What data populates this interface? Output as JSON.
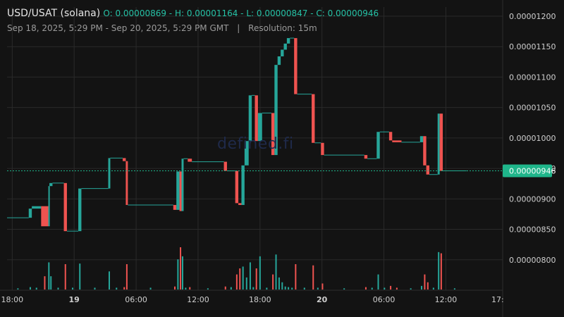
{
  "header": {
    "symbol": "USD/USAT (solana)",
    "ohlc": "O: 0.00000869 - H: 0.00001164 - L: 0.00000847 - C: 0.00000946",
    "range": "Sep 18, 2025, 5:29 PM - Sep 20, 2025, 5:29 PM GMT",
    "separator": "|",
    "resolution": "Resolution: 15m"
  },
  "watermark": "defined.fi",
  "colors": {
    "up": "#26a69a",
    "down": "#ef5350",
    "background": "#131313",
    "grid": "#2a2a2a",
    "price_tag": "#1fb58a"
  },
  "chart_data": {
    "type": "candlestick",
    "title": "USD/USAT (solana)",
    "y_axis_ticks": [
      "0.00001200",
      "0.00001150",
      "0.00001100",
      "0.00001050",
      "0.00001000",
      "0.00000950",
      "0.00000900",
      "0.00000850",
      "0.00000800"
    ],
    "y_range": [
      7.5e-06,
      1.215e-05
    ],
    "x_axis_ticks": [
      {
        "label": "18:00",
        "t": 0.5,
        "bold": false
      },
      {
        "label": "19",
        "t": 6.5,
        "bold": true
      },
      {
        "label": "06:00",
        "t": 12.5,
        "bold": false
      },
      {
        "label": "12:00",
        "t": 18.5,
        "bold": false
      },
      {
        "label": "18:00",
        "t": 24.5,
        "bold": false
      },
      {
        "label": "20",
        "t": 30.5,
        "bold": true
      },
      {
        "label": "06:00",
        "t": 36.5,
        "bold": false
      },
      {
        "label": "12:00",
        "t": 42.5,
        "bold": false
      },
      {
        "label": "17:",
        "t": 47.8,
        "bold": false
      }
    ],
    "x_range_hours": [
      0,
      48
    ],
    "last_price": {
      "label": "0.00000946",
      "value": 9.46e-06
    },
    "segments": [
      {
        "t0": 0.0,
        "t1": 2.1,
        "o": 8.69e-06,
        "c": 8.69e-06,
        "dir": "flat",
        "vol": 2
      },
      {
        "t0": 2.1,
        "t1": 2.4,
        "o": 8.69e-06,
        "c": 8.84e-06,
        "dir": "up",
        "vol": 4
      },
      {
        "t0": 2.4,
        "t1": 3.3,
        "o": 8.84e-06,
        "c": 8.88e-06,
        "dir": "up",
        "vol": 3
      },
      {
        "t0": 3.3,
        "t1": 4.0,
        "o": 8.88e-06,
        "c": 8.55e-06,
        "dir": "down",
        "vol": 22
      },
      {
        "t0": 4.0,
        "t1": 4.1,
        "o": 8.55e-06,
        "c": 9.21e-06,
        "dir": "up",
        "vol": 45
      },
      {
        "t0": 4.1,
        "t1": 4.4,
        "o": 9.21e-06,
        "c": 9.26e-06,
        "dir": "up",
        "vol": 22
      },
      {
        "t0": 4.4,
        "t1": 5.5,
        "o": 9.26e-06,
        "c": 9.26e-06,
        "dir": "flat",
        "vol": 3
      },
      {
        "t0": 5.5,
        "t1": 5.8,
        "o": 9.26e-06,
        "c": 8.47e-06,
        "dir": "down",
        "vol": 42
      },
      {
        "t0": 5.8,
        "t1": 6.9,
        "o": 8.47e-06,
        "c": 8.47e-06,
        "dir": "flat",
        "vol": 3
      },
      {
        "t0": 6.9,
        "t1": 7.2,
        "o": 8.47e-06,
        "c": 9.17e-06,
        "dir": "up",
        "vol": 43
      },
      {
        "t0": 7.2,
        "t1": 9.8,
        "o": 9.17e-06,
        "c": 9.17e-06,
        "dir": "flat",
        "vol": 3
      },
      {
        "t0": 9.8,
        "t1": 10.0,
        "o": 9.17e-06,
        "c": 9.67e-06,
        "dir": "up",
        "vol": 30
      },
      {
        "t0": 10.0,
        "t1": 11.2,
        "o": 9.67e-06,
        "c": 9.67e-06,
        "dir": "flat",
        "vol": 3
      },
      {
        "t0": 11.2,
        "t1": 11.5,
        "o": 9.67e-06,
        "c": 9.62e-06,
        "dir": "down",
        "vol": 4
      },
      {
        "t0": 11.5,
        "t1": 11.7,
        "o": 9.62e-06,
        "c": 8.9e-06,
        "dir": "down",
        "vol": 42
      },
      {
        "t0": 11.7,
        "t1": 16.1,
        "o": 8.9e-06,
        "c": 8.9e-06,
        "dir": "flat",
        "vol": 3
      },
      {
        "t0": 16.1,
        "t1": 16.4,
        "o": 8.9e-06,
        "c": 8.82e-06,
        "dir": "down",
        "vol": 5
      },
      {
        "t0": 16.4,
        "t1": 16.7,
        "o": 8.82e-06,
        "c": 9.45e-06,
        "dir": "up",
        "vol": 50
      },
      {
        "t0": 16.7,
        "t1": 16.9,
        "o": 9.45e-06,
        "c": 8.8e-06,
        "dir": "down",
        "vol": 70
      },
      {
        "t0": 16.9,
        "t1": 17.1,
        "o": 8.8e-06,
        "c": 9.66e-06,
        "dir": "up",
        "vol": 55
      },
      {
        "t0": 17.1,
        "t1": 17.5,
        "o": 9.66e-06,
        "c": 9.66e-06,
        "dir": "flat",
        "vol": 3
      },
      {
        "t0": 17.5,
        "t1": 17.9,
        "o": 9.66e-06,
        "c": 9.61e-06,
        "dir": "down",
        "vol": 4
      },
      {
        "t0": 17.9,
        "t1": 21.0,
        "o": 9.61e-06,
        "c": 9.61e-06,
        "dir": "flat",
        "vol": 2
      },
      {
        "t0": 21.0,
        "t1": 21.3,
        "o": 9.61e-06,
        "c": 9.46e-06,
        "dir": "down",
        "vol": 5
      },
      {
        "t0": 21.3,
        "t1": 22.1,
        "o": 9.46e-06,
        "c": 9.46e-06,
        "dir": "flat",
        "vol": 4
      },
      {
        "t0": 22.1,
        "t1": 22.4,
        "o": 9.46e-06,
        "c": 8.93e-06,
        "dir": "down",
        "vol": 25
      },
      {
        "t0": 22.4,
        "t1": 22.7,
        "o": 8.93e-06,
        "c": 8.9e-06,
        "dir": "down",
        "vol": 35
      },
      {
        "t0": 22.7,
        "t1": 23.0,
        "o": 8.9e-06,
        "c": 9.55e-06,
        "dir": "up",
        "vol": 38
      },
      {
        "t0": 23.0,
        "t1": 23.4,
        "o": 9.55e-06,
        "c": 9.95e-06,
        "dir": "up",
        "vol": 20
      },
      {
        "t0": 23.4,
        "t1": 23.7,
        "o": 9.95e-06,
        "c": 1.07e-05,
        "dir": "up",
        "vol": 45
      },
      {
        "t0": 23.7,
        "t1": 24.0,
        "o": 1.07e-05,
        "c": 1.07e-05,
        "dir": "flat",
        "vol": 4
      },
      {
        "t0": 24.0,
        "t1": 24.3,
        "o": 1.07e-05,
        "c": 9.95e-06,
        "dir": "down",
        "vol": 35
      },
      {
        "t0": 24.3,
        "t1": 24.7,
        "o": 9.95e-06,
        "c": 1.041e-05,
        "dir": "up",
        "vol": 55
      },
      {
        "t0": 24.7,
        "t1": 25.6,
        "o": 1.041e-05,
        "c": 1.041e-05,
        "dir": "flat",
        "vol": 3
      },
      {
        "t0": 25.6,
        "t1": 25.9,
        "o": 1.041e-05,
        "c": 9.72e-06,
        "dir": "down",
        "vol": 25
      },
      {
        "t0": 25.9,
        "t1": 26.2,
        "o": 9.72e-06,
        "c": 1.12e-05,
        "dir": "up",
        "vol": 58
      },
      {
        "t0": 26.2,
        "t1": 26.5,
        "o": 1.12e-05,
        "c": 1.134e-05,
        "dir": "up",
        "vol": 20
      },
      {
        "t0": 26.5,
        "t1": 26.8,
        "o": 1.134e-05,
        "c": 1.145e-05,
        "dir": "up",
        "vol": 12
      },
      {
        "t0": 26.8,
        "t1": 27.1,
        "o": 1.145e-05,
        "c": 1.155e-05,
        "dir": "up",
        "vol": 5
      },
      {
        "t0": 27.1,
        "t1": 27.4,
        "o": 1.155e-05,
        "c": 1.164e-05,
        "dir": "up",
        "vol": 4
      },
      {
        "t0": 27.4,
        "t1": 27.8,
        "o": 1.164e-05,
        "c": 1.164e-05,
        "dir": "flat",
        "vol": 3
      },
      {
        "t0": 27.8,
        "t1": 28.1,
        "o": 1.164e-05,
        "c": 1.072e-05,
        "dir": "down",
        "vol": 42
      },
      {
        "t0": 28.1,
        "t1": 29.5,
        "o": 1.072e-05,
        "c": 1.072e-05,
        "dir": "flat",
        "vol": 3
      },
      {
        "t0": 29.5,
        "t1": 29.8,
        "o": 1.072e-05,
        "c": 9.92e-06,
        "dir": "down",
        "vol": 40
      },
      {
        "t0": 29.8,
        "t1": 30.4,
        "o": 9.92e-06,
        "c": 9.92e-06,
        "dir": "flat",
        "vol": 3
      },
      {
        "t0": 30.4,
        "t1": 30.7,
        "o": 9.92e-06,
        "c": 9.72e-06,
        "dir": "down",
        "vol": 10
      },
      {
        "t0": 30.7,
        "t1": 34.6,
        "o": 9.72e-06,
        "c": 9.72e-06,
        "dir": "flat",
        "vol": 2
      },
      {
        "t0": 34.6,
        "t1": 34.9,
        "o": 9.72e-06,
        "c": 9.66e-06,
        "dir": "down",
        "vol": 4
      },
      {
        "t0": 34.9,
        "t1": 35.8,
        "o": 9.66e-06,
        "c": 9.66e-06,
        "dir": "flat",
        "vol": 3
      },
      {
        "t0": 35.8,
        "t1": 36.1,
        "o": 9.66e-06,
        "c": 1.01e-05,
        "dir": "up",
        "vol": 25
      },
      {
        "t0": 36.1,
        "t1": 37.0,
        "o": 1.01e-05,
        "c": 1.01e-05,
        "dir": "flat",
        "vol": 3
      },
      {
        "t0": 37.0,
        "t1": 37.3,
        "o": 1.01e-05,
        "c": 9.96e-06,
        "dir": "down",
        "vol": 6
      },
      {
        "t0": 37.3,
        "t1": 38.2,
        "o": 9.96e-06,
        "c": 9.93e-06,
        "dir": "down",
        "vol": 3
      },
      {
        "t0": 38.2,
        "t1": 40.0,
        "o": 9.93e-06,
        "c": 9.93e-06,
        "dir": "flat",
        "vol": 2
      },
      {
        "t0": 40.0,
        "t1": 40.3,
        "o": 9.93e-06,
        "c": 1.003e-05,
        "dir": "up",
        "vol": 6
      },
      {
        "t0": 40.3,
        "t1": 40.6,
        "o": 1.003e-05,
        "c": 9.55e-06,
        "dir": "down",
        "vol": 25
      },
      {
        "t0": 40.6,
        "t1": 40.9,
        "o": 9.55e-06,
        "c": 9.4e-06,
        "dir": "down",
        "vol": 12
      },
      {
        "t0": 40.9,
        "t1": 41.7,
        "o": 9.4e-06,
        "c": 9.4e-06,
        "dir": "flat",
        "vol": 3
      },
      {
        "t0": 41.7,
        "t1": 41.9,
        "o": 9.4e-06,
        "c": 1.04e-05,
        "dir": "up",
        "vol": 62
      },
      {
        "t0": 41.9,
        "t1": 42.2,
        "o": 1.04e-05,
        "c": 9.46e-06,
        "dir": "down",
        "vol": 60
      },
      {
        "t0": 42.2,
        "t1": 44.5,
        "o": 9.46e-06,
        "c": 9.46e-06,
        "dir": "flat",
        "vol": 2
      }
    ]
  }
}
